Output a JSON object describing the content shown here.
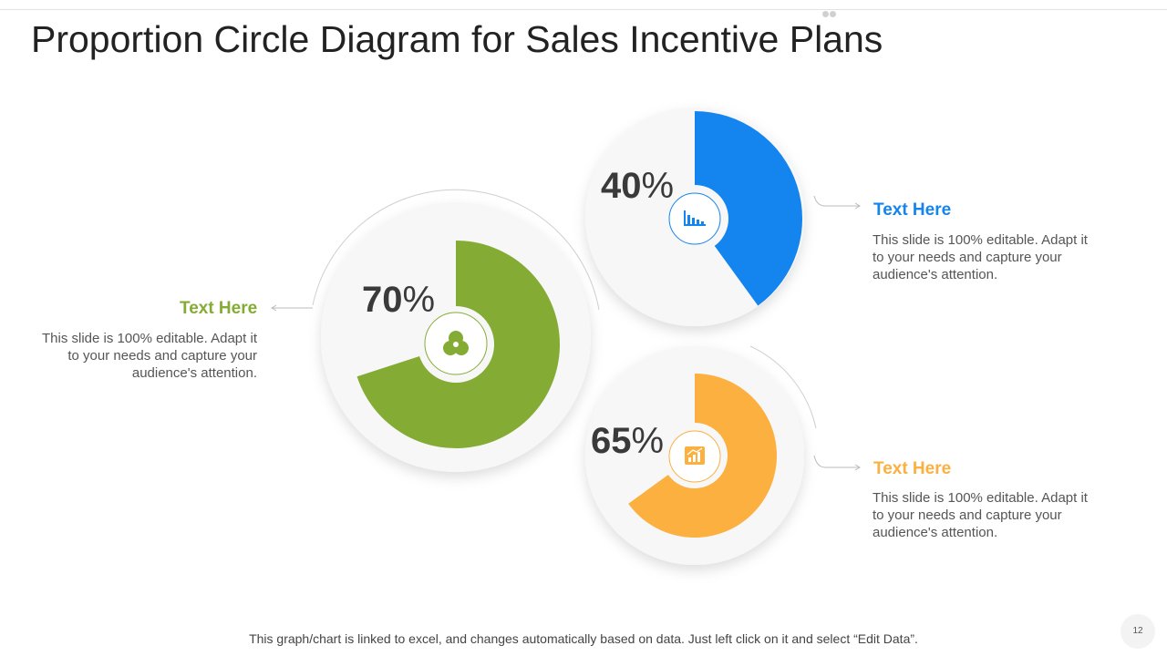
{
  "title": "Proportion Circle Diagram for Sales Incentive Plans",
  "footer": "This graph/chart is linked to excel, and changes automatically based on data. Just left click on it and select “Edit Data”.",
  "page_number": "12",
  "chart_data": {
    "type": "pie",
    "title": "Proportion Circle Diagram for Sales Incentive Plans",
    "series": [
      {
        "name": "Text Here",
        "value": 70,
        "label": "70",
        "color": "#84AC35",
        "icon": "venn-icon",
        "description": "This slide is 100% editable. Adapt it to your needs and capture your audience's attention."
      },
      {
        "name": "Text Here",
        "value": 40,
        "label": "40",
        "color": "#1484EE",
        "icon": "bar-chart-icon",
        "description": "This slide is 100% editable. Adapt it to your needs and capture your audience's attention."
      },
      {
        "name": "Text Here",
        "value": 65,
        "label": "65",
        "color": "#FBB040",
        "icon": "growth-chart-icon",
        "description": "This slide is 100% editable. Adapt it to your needs and capture your audience's attention."
      }
    ],
    "unit": "%"
  }
}
